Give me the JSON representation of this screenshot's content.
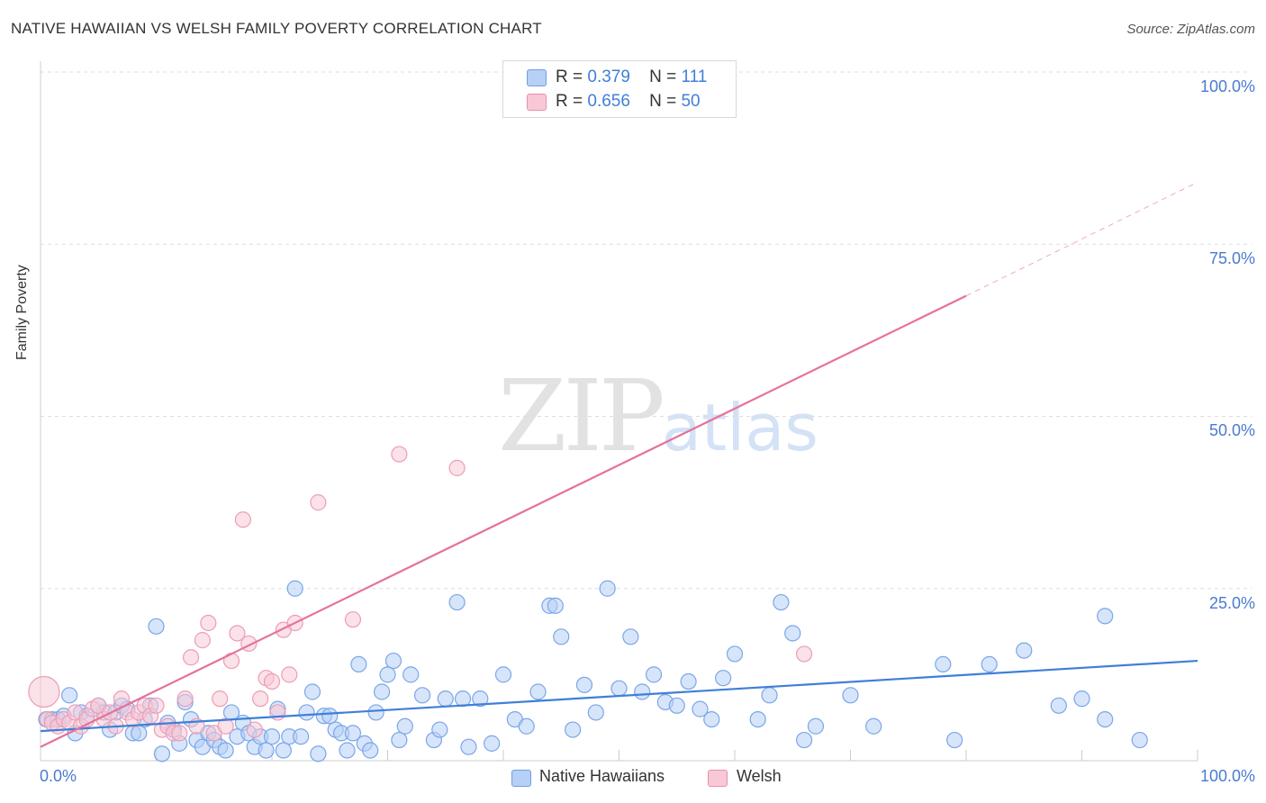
{
  "title": "NATIVE HAWAIIAN VS WELSH FAMILY POVERTY CORRELATION CHART",
  "source": "Source: ZipAtlas.com",
  "watermark": {
    "zip": "ZIP",
    "atlas": "atlas"
  },
  "stats": [
    {
      "r_label": "R =",
      "r_value": "0.379",
      "n_label": "N =",
      "n_value": "111"
    },
    {
      "r_label": "R =",
      "r_value": "0.656",
      "n_label": "N =",
      "n_value": "50"
    }
  ],
  "legend": [
    "Native Hawaiians",
    "Welsh"
  ],
  "colors": {
    "blue": "#3f7fd9",
    "pink": "#e5729b",
    "blue_fill": "#b7d0f5",
    "pink_fill": "#f8c8d6"
  },
  "chart_data": {
    "type": "scatter",
    "title": "NATIVE HAWAIIAN VS WELSH FAMILY POVERTY CORRELATION CHART",
    "xlabel": "",
    "ylabel": "Family Poverty",
    "xlim": [
      0,
      100
    ],
    "ylim": [
      0,
      100
    ],
    "x_tick_labels": [
      "0.0%",
      "100.0%"
    ],
    "y_tick_labels": [
      "100.0%",
      "75.0%",
      "50.0%",
      "25.0%"
    ],
    "y_ticks": [
      100,
      75,
      50,
      25
    ],
    "x_ticks": [
      0,
      10,
      20,
      30,
      40,
      50,
      60,
      70,
      80,
      90,
      100
    ],
    "grid": true,
    "series": [
      {
        "name": "Native Hawaiians",
        "r": 0.379,
        "n": 111,
        "trend": {
          "x0": 0,
          "y0": 4.3,
          "x1": 100,
          "y1": 14.5,
          "dashed_from": 100
        },
        "points": [
          [
            0.5,
            6
          ],
          [
            1,
            6
          ],
          [
            1.5,
            6
          ],
          [
            2,
            6.5
          ],
          [
            2.5,
            9.5
          ],
          [
            3,
            4
          ],
          [
            3.5,
            7
          ],
          [
            4,
            6.5
          ],
          [
            5,
            8
          ],
          [
            5.5,
            7
          ],
          [
            6,
            4.5
          ],
          [
            6.5,
            7
          ],
          [
            7,
            8
          ],
          [
            7.5,
            7.5
          ],
          [
            8,
            4
          ],
          [
            8.5,
            4
          ],
          [
            9,
            6
          ],
          [
            9.5,
            8
          ],
          [
            10,
            19.5
          ],
          [
            10.5,
            1
          ],
          [
            11,
            5.5
          ],
          [
            11.5,
            4.5
          ],
          [
            12,
            2.5
          ],
          [
            12.5,
            8.5
          ],
          [
            13,
            6
          ],
          [
            13.5,
            3
          ],
          [
            14,
            2
          ],
          [
            14.5,
            4
          ],
          [
            15,
            3
          ],
          [
            15.5,
            2
          ],
          [
            16,
            1.5
          ],
          [
            16.5,
            7
          ],
          [
            17,
            3.5
          ],
          [
            17.5,
            5.5
          ],
          [
            18,
            4
          ],
          [
            18.5,
            2
          ],
          [
            19,
            3.5
          ],
          [
            19.5,
            1.5
          ],
          [
            20,
            3.5
          ],
          [
            20.5,
            7.5
          ],
          [
            21,
            1.5
          ],
          [
            21.5,
            3.5
          ],
          [
            22,
            25
          ],
          [
            22.5,
            3.5
          ],
          [
            23,
            7
          ],
          [
            23.5,
            10
          ],
          [
            24,
            1
          ],
          [
            24.5,
            6.5
          ],
          [
            25,
            6.5
          ],
          [
            25.5,
            4.5
          ],
          [
            26,
            4
          ],
          [
            26.5,
            1.5
          ],
          [
            27,
            4
          ],
          [
            27.5,
            14
          ],
          [
            28,
            2.5
          ],
          [
            28.5,
            1.5
          ],
          [
            29,
            7
          ],
          [
            29.5,
            10
          ],
          [
            30,
            12.5
          ],
          [
            30.5,
            14.5
          ],
          [
            31,
            3
          ],
          [
            31.5,
            5
          ],
          [
            32,
            12.5
          ],
          [
            33,
            9.5
          ],
          [
            34,
            3
          ],
          [
            34.5,
            4.5
          ],
          [
            35,
            9
          ],
          [
            36,
            23
          ],
          [
            36.5,
            9
          ],
          [
            37,
            2
          ],
          [
            38,
            9
          ],
          [
            39,
            2.5
          ],
          [
            40,
            12.5
          ],
          [
            41,
            6
          ],
          [
            42,
            5
          ],
          [
            43,
            10
          ],
          [
            44,
            22.5
          ],
          [
            44.5,
            22.5
          ],
          [
            45,
            18
          ],
          [
            46,
            4.5
          ],
          [
            47,
            11
          ],
          [
            48,
            7
          ],
          [
            49,
            25
          ],
          [
            50,
            10.5
          ],
          [
            51,
            18
          ],
          [
            52,
            10
          ],
          [
            53,
            12.5
          ],
          [
            54,
            8.5
          ],
          [
            55,
            8
          ],
          [
            56,
            11.5
          ],
          [
            57,
            7.5
          ],
          [
            58,
            6
          ],
          [
            59,
            12
          ],
          [
            60,
            15.5
          ],
          [
            62,
            6
          ],
          [
            63,
            9.5
          ],
          [
            64,
            23
          ],
          [
            65,
            18.5
          ],
          [
            66,
            3
          ],
          [
            67,
            5
          ],
          [
            70,
            9.5
          ],
          [
            72,
            5
          ],
          [
            78,
            14
          ],
          [
            79,
            3
          ],
          [
            82,
            14
          ],
          [
            85,
            16
          ],
          [
            88,
            8
          ],
          [
            90,
            9
          ],
          [
            92,
            6
          ],
          [
            95,
            3
          ],
          [
            92,
            21
          ]
        ]
      },
      {
        "name": "Welsh",
        "r": 0.656,
        "n": 50,
        "trend": {
          "x0": 0,
          "y0": 2,
          "x1": 80,
          "y1": 67.5,
          "dashed_from": 80,
          "dashed_to": 100,
          "dashed_y1": 84
        },
        "points": [
          [
            0.3,
            10
          ],
          [
            0.6,
            6
          ],
          [
            1,
            5.5
          ],
          [
            1.5,
            5
          ],
          [
            2,
            6
          ],
          [
            2.5,
            5.5
          ],
          [
            3,
            7
          ],
          [
            3.5,
            5
          ],
          [
            4,
            6
          ],
          [
            4.5,
            7.5
          ],
          [
            5,
            8
          ],
          [
            5.5,
            6
          ],
          [
            6,
            7
          ],
          [
            6.5,
            5
          ],
          [
            7,
            9
          ],
          [
            7.5,
            7
          ],
          [
            8,
            6
          ],
          [
            8.5,
            7
          ],
          [
            9,
            8
          ],
          [
            9.5,
            6.5
          ],
          [
            10,
            8
          ],
          [
            10.5,
            4.5
          ],
          [
            11,
            5
          ],
          [
            11.5,
            4
          ],
          [
            12,
            4
          ],
          [
            12.5,
            9
          ],
          [
            13,
            15
          ],
          [
            13.5,
            5
          ],
          [
            14,
            17.5
          ],
          [
            14.5,
            20
          ],
          [
            15,
            4
          ],
          [
            15.5,
            9
          ],
          [
            16,
            5
          ],
          [
            16.5,
            14.5
          ],
          [
            17,
            18.5
          ],
          [
            17.5,
            35
          ],
          [
            18,
            17
          ],
          [
            18.5,
            4.5
          ],
          [
            19,
            9
          ],
          [
            19.5,
            12
          ],
          [
            20,
            11.5
          ],
          [
            20.5,
            7
          ],
          [
            21,
            19
          ],
          [
            21.5,
            12.5
          ],
          [
            22,
            20
          ],
          [
            24,
            37.5
          ],
          [
            27,
            20.5
          ],
          [
            31,
            44.5
          ],
          [
            36,
            42.5
          ],
          [
            66,
            15.5
          ]
        ]
      }
    ]
  }
}
